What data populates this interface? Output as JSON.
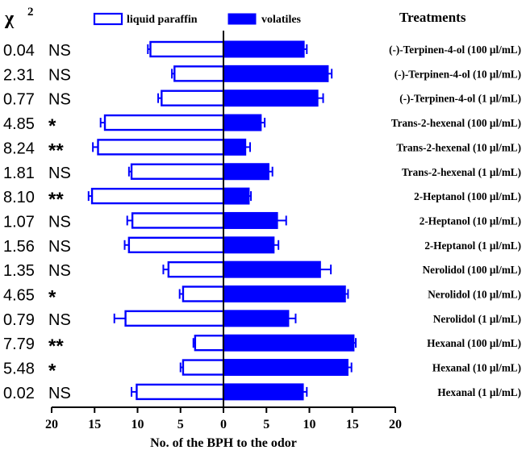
{
  "chart_data": {
    "type": "bar",
    "orientation": "horizontal-back-to-back",
    "xlabel": "No. of the BPH to the odor",
    "xlim": [
      -20,
      20
    ],
    "xticks": [
      -20,
      -15,
      -10,
      -5,
      0,
      5,
      10,
      15,
      20
    ],
    "xtick_labels": [
      "20",
      "15",
      "10",
      "5",
      "0",
      "5",
      "10",
      "15",
      "20"
    ],
    "chi_header": "χ",
    "chi_superscript": "2",
    "treatments_header": "Treatments",
    "legend": [
      {
        "name": "liquid paraffin",
        "style": "outline",
        "color": "#0000ff"
      },
      {
        "name": "volatiles",
        "style": "filled",
        "color": "#0000ff"
      }
    ],
    "categories": [
      "(-)-Terpinen-4-ol (100 µl/mL)",
      "(-)-Terpinen-4-ol (10 µl/mL)",
      "(-)-Terpinen-4-ol (1 µl/mL)",
      "Trans-2-hexenal (100 µl/mL)",
      "Trans-2-hexenal (10 µl/mL)",
      "Trans-2-hexenal (1 µl/mL)",
      "2-Heptanol (100 µl/mL)",
      "2-Heptanol (10 µl/mL)",
      "2-Heptanol (1 µl/mL)",
      "Nerolidol (100 µl/mL)",
      "Nerolidol (10 µl/mL)",
      "Nerolidol (1 µl/mL)",
      "Hexanal (100 µl/mL)",
      "Hexanal (10 µl/mL)",
      "Hexanal (1 µl/mL)"
    ],
    "chi_square": [
      "0.04",
      "2.31",
      "0.77",
      "4.85",
      "8.24",
      "1.81",
      "8.10",
      "1.07",
      "1.56",
      "1.35",
      "4.65",
      "0.79",
      "7.79",
      "5.48",
      "0.02"
    ],
    "significance": [
      "NS",
      "NS",
      "NS",
      "*",
      "**",
      "NS",
      "**",
      "NS",
      "NS",
      "NS",
      "*",
      "NS",
      "**",
      "*",
      "NS"
    ],
    "series": [
      {
        "name": "liquid paraffin",
        "side": "left",
        "values": [
          8.5,
          5.7,
          7.2,
          13.8,
          14.6,
          10.7,
          15.3,
          10.6,
          11.0,
          6.4,
          4.7,
          11.4,
          3.3,
          4.7,
          10.1
        ],
        "errors": [
          0.3,
          0.3,
          0.4,
          0.5,
          0.6,
          0.3,
          0.4,
          0.6,
          0.5,
          0.6,
          0.4,
          1.3,
          0.2,
          0.3,
          0.6
        ]
      },
      {
        "name": "volatiles",
        "side": "right",
        "values": [
          9.4,
          12.2,
          11.0,
          4.4,
          2.6,
          5.3,
          3.0,
          6.3,
          5.9,
          11.3,
          14.2,
          7.6,
          15.2,
          14.5,
          9.3
        ],
        "errors": [
          0.3,
          0.4,
          0.6,
          0.4,
          0.5,
          0.4,
          0.2,
          1.0,
          0.5,
          1.2,
          0.3,
          0.8,
          0.2,
          0.4,
          0.4
        ]
      }
    ]
  }
}
